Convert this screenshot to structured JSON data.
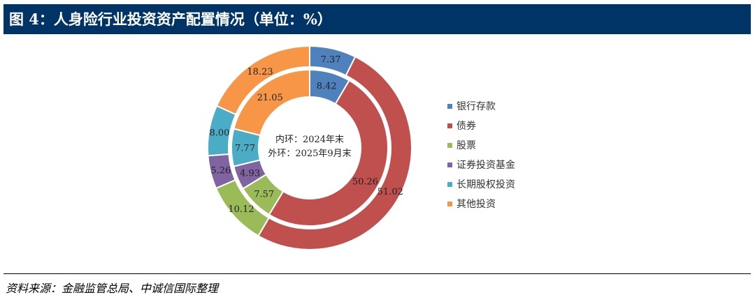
{
  "title": "图 4：人身险行业投资资产配置情况（单位：%）",
  "source": "资料来源：金融监管总局、中诚信国际整理",
  "chart_data": {
    "type": "donut",
    "title": "图 4：人身险行业投资资产配置情况（单位：%）",
    "categories": [
      "银行存款",
      "债券",
      "股票",
      "证券投资基金",
      "长期股权投资",
      "其他投资"
    ],
    "colors": [
      "#4F81BD",
      "#C0504D",
      "#9BBB59",
      "#8064A2",
      "#4BACC6",
      "#F79646"
    ],
    "series": [
      {
        "name": "内环：2024年末",
        "ring": "inner",
        "values": [
          8.42,
          50.26,
          7.57,
          4.93,
          7.77,
          21.05
        ]
      },
      {
        "name": "外环：2025年9月末",
        "ring": "outer",
        "values": [
          7.37,
          51.02,
          10.12,
          5.26,
          8.0,
          18.23
        ]
      }
    ],
    "center_labels": [
      "内环：2024年末",
      "外环：2025年9月末"
    ],
    "legend_position": "right"
  }
}
